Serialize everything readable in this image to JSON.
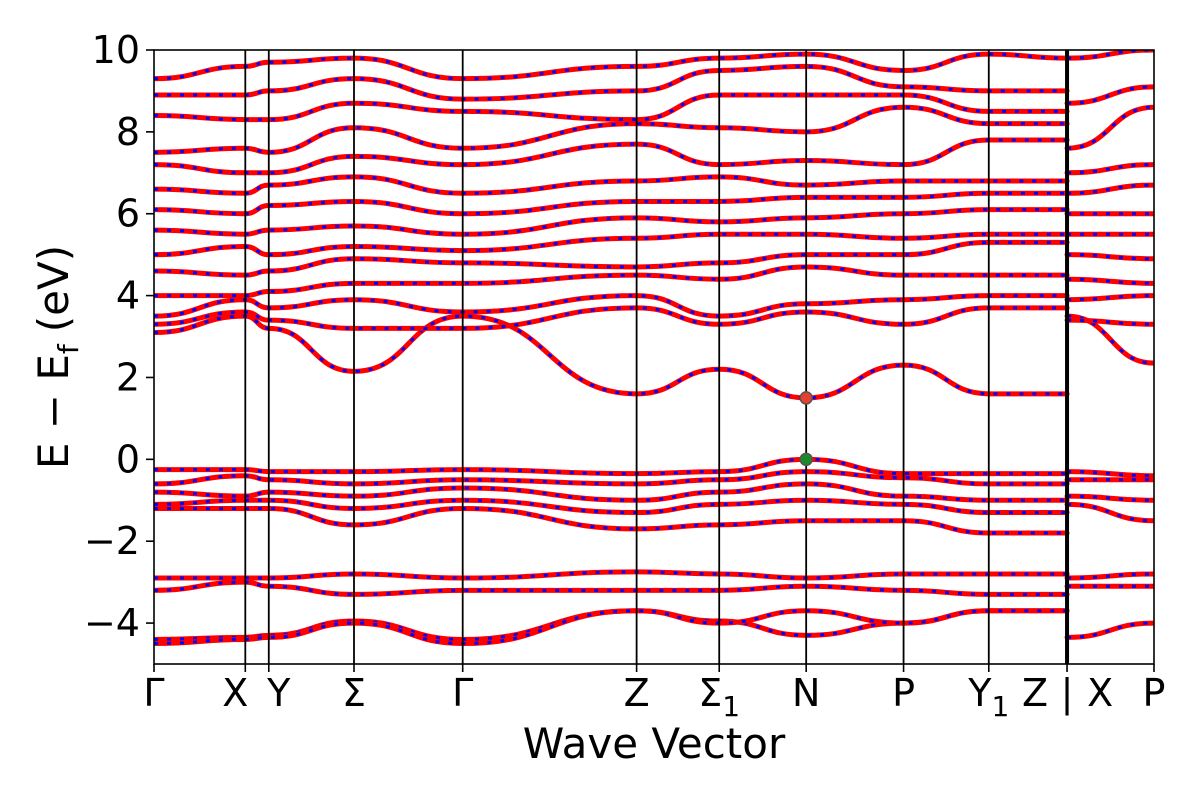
{
  "chart_data": {
    "type": "line",
    "title": "",
    "xlabel": "Wave Vector",
    "ylabel": "E − E_f (eV)",
    "ylabel_parts": {
      "main": "E − E",
      "sub": "f",
      "unit": "(eV)"
    },
    "ylim": [
      -5,
      10
    ],
    "yticks": [
      -4,
      -2,
      0,
      2,
      4,
      6,
      8,
      10
    ],
    "grid": false,
    "legend": "none",
    "x_domain": [
      0,
      11.5
    ],
    "kpoints": [
      {
        "x": 0.0,
        "label": "Γ",
        "sub": ""
      },
      {
        "x": 1.05,
        "label": "X",
        "sub": ""
      },
      {
        "x": 1.32,
        "label": "Y",
        "sub": ""
      },
      {
        "x": 2.3,
        "label": "Σ",
        "sub": ""
      },
      {
        "x": 3.55,
        "label": "Γ",
        "sub": ""
      },
      {
        "x": 5.55,
        "label": "Z",
        "sub": ""
      },
      {
        "x": 6.5,
        "label": "Σ",
        "sub": "1"
      },
      {
        "x": 7.5,
        "label": "N",
        "sub": ""
      },
      {
        "x": 8.62,
        "label": "P",
        "sub": ""
      },
      {
        "x": 9.6,
        "label": "Y",
        "sub": "1"
      },
      {
        "x": 10.5,
        "label": "Z",
        "sub": ""
      },
      {
        "x": 11.5,
        "label": "P",
        "sub": ""
      }
    ],
    "segment_break": {
      "x": 10.5,
      "label": "|",
      "after_label": "X",
      "after_x": 10.88
    },
    "line_colors": {
      "base": "#ff0000",
      "dash": "#0000ff"
    },
    "bands": [
      {
        "name": "cb1",
        "x": [
          0,
          1.05,
          1.32,
          2.3,
          3.55,
          5.55,
          6.5,
          7.5,
          8.62,
          9.6,
          10.5
        ],
        "y": [
          3.1,
          3.5,
          3.2,
          2.15,
          3.5,
          1.6,
          2.2,
          1.5,
          2.3,
          1.6,
          1.6
        ]
      },
      {
        "name": "cb2",
        "x": [
          0,
          1.05,
          1.32,
          2.3,
          3.55,
          5.55,
          6.5,
          7.5,
          8.62,
          9.6,
          10.5
        ],
        "y": [
          3.3,
          3.6,
          3.4,
          3.2,
          3.2,
          3.7,
          3.3,
          3.6,
          3.3,
          3.7,
          3.7
        ]
      },
      {
        "name": "cb3",
        "x": [
          0,
          1.05,
          1.32,
          2.3,
          3.55,
          5.55,
          6.5,
          7.5,
          8.62,
          9.6,
          10.5
        ],
        "y": [
          3.5,
          3.9,
          3.7,
          3.9,
          3.6,
          4.0,
          3.5,
          3.8,
          3.9,
          4.0,
          4.0
        ]
      },
      {
        "name": "cb4",
        "x": [
          0,
          1.05,
          1.32,
          2.3,
          3.55,
          5.55,
          6.5,
          7.5,
          8.62,
          9.6,
          10.5
        ],
        "y": [
          4.0,
          4.0,
          4.1,
          4.3,
          4.3,
          4.5,
          4.4,
          4.7,
          4.5,
          4.5,
          4.5
        ]
      },
      {
        "name": "cb5",
        "x": [
          0,
          1.05,
          1.32,
          2.3,
          3.55,
          5.55,
          6.5,
          7.5,
          8.62,
          9.6,
          10.5
        ],
        "y": [
          4.6,
          4.5,
          4.6,
          4.9,
          4.8,
          4.7,
          4.8,
          5.0,
          5.0,
          5.3,
          5.3
        ]
      },
      {
        "name": "cb6",
        "x": [
          0,
          1.05,
          1.32,
          2.3,
          3.55,
          5.55,
          6.5,
          7.5,
          8.62,
          9.6,
          10.5
        ],
        "y": [
          5.0,
          5.2,
          5.0,
          5.2,
          5.1,
          5.4,
          5.5,
          5.5,
          5.4,
          5.5,
          5.5
        ]
      },
      {
        "name": "cb7",
        "x": [
          0,
          1.05,
          1.32,
          2.3,
          3.55,
          5.55,
          6.5,
          7.5,
          8.62,
          9.6,
          10.5
        ],
        "y": [
          5.6,
          5.5,
          5.6,
          5.7,
          5.5,
          5.9,
          5.8,
          5.9,
          6.0,
          6.1,
          6.1
        ]
      },
      {
        "name": "cb8",
        "x": [
          0,
          1.05,
          1.32,
          2.3,
          3.55,
          5.55,
          6.5,
          7.5,
          8.62,
          9.6,
          10.5
        ],
        "y": [
          6.1,
          6.0,
          6.2,
          6.3,
          6.0,
          6.3,
          6.3,
          6.4,
          6.4,
          6.5,
          6.5
        ]
      },
      {
        "name": "cb9",
        "x": [
          0,
          1.05,
          1.32,
          2.3,
          3.55,
          5.55,
          6.5,
          7.5,
          8.62,
          9.6,
          10.5
        ],
        "y": [
          6.6,
          6.5,
          6.7,
          6.9,
          6.5,
          6.8,
          6.9,
          6.7,
          6.8,
          6.8,
          6.8
        ]
      },
      {
        "name": "cb10",
        "x": [
          0,
          1.05,
          1.32,
          2.3,
          3.55,
          5.55,
          6.5,
          7.5,
          8.62,
          9.6,
          10.5
        ],
        "y": [
          7.2,
          7.0,
          7.0,
          7.4,
          7.2,
          7.7,
          7.2,
          7.3,
          7.2,
          7.8,
          7.8
        ]
      },
      {
        "name": "cb11",
        "x": [
          0,
          1.05,
          1.32,
          2.3,
          3.55,
          5.55,
          6.5,
          7.5,
          8.62,
          9.6,
          10.5
        ],
        "y": [
          7.5,
          7.6,
          7.5,
          8.1,
          7.6,
          8.2,
          8.1,
          8.0,
          8.6,
          8.2,
          8.2
        ]
      },
      {
        "name": "cb12",
        "x": [
          0,
          1.05,
          1.32,
          2.3,
          3.55,
          5.55,
          6.5,
          7.5,
          8.62,
          9.6,
          10.5
        ],
        "y": [
          8.4,
          8.3,
          8.3,
          8.7,
          8.5,
          8.3,
          8.9,
          8.9,
          8.9,
          8.5,
          8.5
        ]
      },
      {
        "name": "cb13",
        "x": [
          0,
          1.05,
          1.32,
          2.3,
          3.55,
          5.55,
          6.5,
          7.5,
          8.62,
          9.6,
          10.5
        ],
        "y": [
          8.9,
          8.9,
          9.0,
          9.3,
          8.8,
          9.0,
          9.5,
          9.6,
          9.1,
          9.0,
          9.0
        ]
      },
      {
        "name": "cb14",
        "x": [
          0,
          1.05,
          1.32,
          2.3,
          3.55,
          5.55,
          6.5,
          7.5,
          8.62,
          9.6,
          10.5
        ],
        "y": [
          9.3,
          9.6,
          9.7,
          9.8,
          9.3,
          9.6,
          9.8,
          9.9,
          9.5,
          9.9,
          9.8
        ]
      },
      {
        "name": "vb1",
        "x": [
          0,
          1.05,
          1.32,
          2.3,
          3.55,
          5.55,
          6.5,
          7.5,
          8.62,
          9.6,
          10.5
        ],
        "y": [
          -0.25,
          -0.25,
          -0.3,
          -0.3,
          -0.25,
          -0.35,
          -0.3,
          0.0,
          -0.35,
          -0.35,
          -0.35
        ]
      },
      {
        "name": "vb2",
        "x": [
          0,
          1.05,
          1.32,
          2.3,
          3.55,
          5.55,
          6.5,
          7.5,
          8.62,
          9.6,
          10.5
        ],
        "y": [
          -0.6,
          -0.4,
          -0.5,
          -0.6,
          -0.5,
          -0.6,
          -0.5,
          -0.3,
          -0.45,
          -0.6,
          -0.6
        ]
      },
      {
        "name": "vb3",
        "x": [
          0,
          1.05,
          1.32,
          2.3,
          3.55,
          5.55,
          6.5,
          7.5,
          8.62,
          9.6,
          10.5
        ],
        "y": [
          -0.8,
          -0.9,
          -0.8,
          -0.9,
          -0.7,
          -1.0,
          -0.8,
          -0.6,
          -0.9,
          -1.0,
          -1.0
        ]
      },
      {
        "name": "vb4",
        "x": [
          0,
          1.05,
          1.32,
          2.3,
          3.55,
          5.55,
          6.5,
          7.5,
          8.62,
          9.6,
          10.5
        ],
        "y": [
          -1.1,
          -1.0,
          -1.0,
          -1.2,
          -1.0,
          -1.3,
          -1.1,
          -1.0,
          -1.1,
          -1.3,
          -1.3
        ]
      },
      {
        "name": "vb5",
        "x": [
          0,
          1.05,
          1.32,
          2.3,
          3.55,
          5.55,
          6.5,
          7.5,
          8.62,
          9.6,
          10.5
        ],
        "y": [
          -1.2,
          -1.2,
          -1.2,
          -1.6,
          -1.2,
          -1.7,
          -1.6,
          -1.5,
          -1.5,
          -1.8,
          -1.8
        ]
      },
      {
        "name": "vb6",
        "x": [
          0,
          1.05,
          1.32,
          2.3,
          3.55,
          5.55,
          6.5,
          7.5,
          8.62,
          9.6,
          10.5
        ],
        "y": [
          -2.9,
          -2.9,
          -2.9,
          -2.8,
          -2.9,
          -2.75,
          -2.8,
          -2.9,
          -2.8,
          -2.8,
          -2.8
        ]
      },
      {
        "name": "vb7",
        "x": [
          0,
          1.05,
          1.32,
          2.3,
          3.55,
          5.55,
          6.5,
          7.5,
          8.62,
          9.6,
          10.5
        ],
        "y": [
          -3.2,
          -3.0,
          -3.1,
          -3.3,
          -3.2,
          -3.2,
          -3.2,
          -3.1,
          -3.2,
          -3.3,
          -3.3
        ]
      },
      {
        "name": "vb8",
        "x": [
          0,
          1.05,
          1.32,
          2.3,
          3.55,
          5.55,
          6.5,
          7.5,
          8.62,
          9.6,
          10.5
        ],
        "y": [
          -4.4,
          -4.35,
          -4.3,
          -3.95,
          -4.4,
          -3.7,
          -3.95,
          -4.3,
          -4.0,
          -3.7,
          -3.7
        ]
      },
      {
        "name": "vb9",
        "x": [
          0,
          1.05,
          1.32,
          2.3,
          3.55,
          5.55,
          6.5,
          7.5,
          8.62,
          9.6,
          10.5
        ],
        "y": [
          -4.5,
          -4.4,
          -4.35,
          -4.0,
          -4.5,
          -3.7,
          -4.0,
          -3.7,
          -4.0,
          -3.7,
          -3.7
        ]
      },
      {
        "name": "seg2-cb1",
        "x": [
          10.5,
          11.5
        ],
        "y": [
          3.5,
          2.35
        ]
      },
      {
        "name": "seg2-cb2",
        "x": [
          10.5,
          11.5
        ],
        "y": [
          3.4,
          3.3
        ]
      },
      {
        "name": "seg2-cb3",
        "x": [
          10.5,
          11.5
        ],
        "y": [
          3.9,
          4.0
        ]
      },
      {
        "name": "seg2-cb4",
        "x": [
          10.5,
          11.5
        ],
        "y": [
          4.4,
          4.3
        ]
      },
      {
        "name": "seg2-cb5",
        "x": [
          10.5,
          11.5
        ],
        "y": [
          5.0,
          4.9
        ]
      },
      {
        "name": "seg2-cb6",
        "x": [
          10.5,
          11.5
        ],
        "y": [
          5.5,
          5.5
        ]
      },
      {
        "name": "seg2-cb7",
        "x": [
          10.5,
          11.5
        ],
        "y": [
          6.0,
          6.0
        ]
      },
      {
        "name": "seg2-cb8",
        "x": [
          10.5,
          11.5
        ],
        "y": [
          6.5,
          6.7
        ]
      },
      {
        "name": "seg2-cb9",
        "x": [
          10.5,
          11.5
        ],
        "y": [
          7.0,
          7.2
        ]
      },
      {
        "name": "seg2-cb10",
        "x": [
          10.5,
          11.5
        ],
        "y": [
          7.6,
          8.6
        ]
      },
      {
        "name": "seg2-cb11",
        "x": [
          10.5,
          11.5
        ],
        "y": [
          8.7,
          9.1
        ]
      },
      {
        "name": "seg2-cb12",
        "x": [
          10.5,
          11.5
        ],
        "y": [
          9.8,
          10.0
        ]
      },
      {
        "name": "seg2-vb1",
        "x": [
          10.5,
          11.5
        ],
        "y": [
          -0.3,
          -0.4
        ]
      },
      {
        "name": "seg2-vb2",
        "x": [
          10.5,
          11.5
        ],
        "y": [
          -0.5,
          -0.5
        ]
      },
      {
        "name": "seg2-vb3",
        "x": [
          10.5,
          11.5
        ],
        "y": [
          -0.9,
          -1.0
        ]
      },
      {
        "name": "seg2-vb4",
        "x": [
          10.5,
          11.5
        ],
        "y": [
          -1.1,
          -1.5
        ]
      },
      {
        "name": "seg2-vb5",
        "x": [
          10.5,
          11.5
        ],
        "y": [
          -2.9,
          -2.8
        ]
      },
      {
        "name": "seg2-vb6",
        "x": [
          10.5,
          11.5
        ],
        "y": [
          -3.1,
          -3.1
        ]
      },
      {
        "name": "seg2-vb7",
        "x": [
          10.5,
          11.5
        ],
        "y": [
          -4.35,
          -4.0
        ]
      }
    ],
    "markers": [
      {
        "name": "cbm-marker",
        "x": 7.5,
        "y": 1.5,
        "color": "#e8402f",
        "edge": "#555555"
      },
      {
        "name": "vbm-marker",
        "x": 7.5,
        "y": 0.0,
        "color": "#1a8a2a",
        "edge": "#555555"
      }
    ]
  }
}
